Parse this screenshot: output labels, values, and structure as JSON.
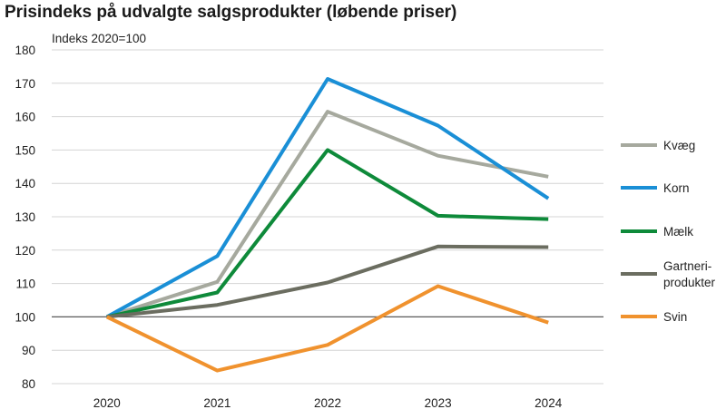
{
  "chart_data": {
    "type": "line",
    "title": "Prisindeks på udvalgte salgsprodukter (løbende priser)",
    "ylabel": "Indeks 2020=100",
    "xlabel": "",
    "categories": [
      "2020",
      "2021",
      "2022",
      "2023",
      "2024"
    ],
    "ylim": [
      80,
      180
    ],
    "yticks": [
      80,
      90,
      100,
      110,
      120,
      130,
      140,
      150,
      160,
      170,
      180
    ],
    "reference_line": 100,
    "grid": "horizontal",
    "legend_position": "right",
    "series": [
      {
        "name": "Kvæg",
        "label_lines": [
          "Kvæg"
        ],
        "color": "#a6a99e",
        "values": [
          100,
          110.5,
          161.5,
          148.3,
          142.0
        ]
      },
      {
        "name": "Korn",
        "label_lines": [
          "Korn"
        ],
        "color": "#1a8fd6",
        "values": [
          100,
          118.2,
          171.3,
          157.3,
          135.5
        ]
      },
      {
        "name": "Mælk",
        "label_lines": [
          "Mælk"
        ],
        "color": "#0e8a3a",
        "values": [
          100,
          107.3,
          150.0,
          130.3,
          129.3
        ]
      },
      {
        "name": "Gartneri-produkter",
        "label_lines": [
          "Gartneri-",
          "produkter"
        ],
        "color": "#6b6d60",
        "values": [
          100,
          103.6,
          110.3,
          121.1,
          120.9
        ]
      },
      {
        "name": "Svin",
        "label_lines": [
          "Svin"
        ],
        "color": "#f0922e",
        "values": [
          100,
          83.9,
          91.6,
          109.2,
          98.3
        ]
      }
    ]
  }
}
